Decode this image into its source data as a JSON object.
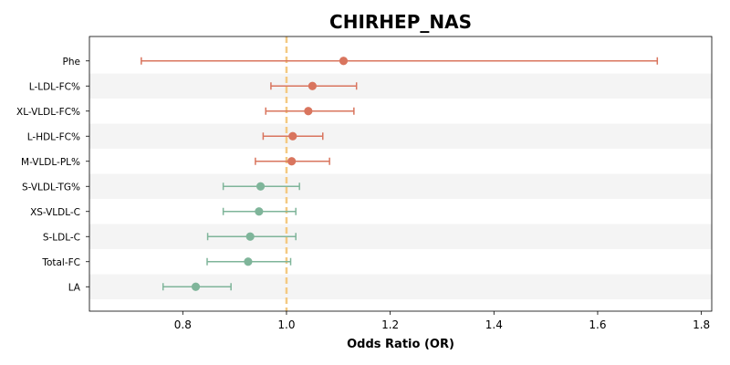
{
  "chart_data": {
    "type": "forest",
    "title": "CHIRHEP_NAS",
    "xlabel": "Odds Ratio (OR)",
    "ylabel": "",
    "xlim": [
      0.62,
      1.82
    ],
    "xticks": [
      "0.8",
      "1.0",
      "1.2",
      "1.4",
      "1.6",
      "1.8"
    ],
    "reference_line": 1.0,
    "reference_color": "#f3c982",
    "colors": {
      "positive": "#d9755e",
      "negative": "#7fb59a",
      "stripe": "#f4f4f4"
    },
    "grid": false,
    "rows": [
      {
        "label": "Phe",
        "or": 1.11,
        "lo": 0.72,
        "hi": 1.715,
        "group": "positive"
      },
      {
        "label": "L-LDL-FC%",
        "or": 1.05,
        "lo": 0.97,
        "hi": 1.135,
        "group": "positive"
      },
      {
        "label": "XL-VLDL-FC%",
        "or": 1.042,
        "lo": 0.96,
        "hi": 1.13,
        "group": "positive"
      },
      {
        "label": "L-HDL-FC%",
        "or": 1.012,
        "lo": 0.955,
        "hi": 1.07,
        "group": "positive"
      },
      {
        "label": "M-VLDL-PL%",
        "or": 1.01,
        "lo": 0.94,
        "hi": 1.083,
        "group": "positive"
      },
      {
        "label": "S-VLDL-TG%",
        "or": 0.95,
        "lo": 0.878,
        "hi": 1.025,
        "group": "negative"
      },
      {
        "label": "XS-VLDL-C",
        "or": 0.947,
        "lo": 0.878,
        "hi": 1.018,
        "group": "negative"
      },
      {
        "label": "S-LDL-C",
        "or": 0.93,
        "lo": 0.848,
        "hi": 1.018,
        "group": "negative"
      },
      {
        "label": "Total-FC",
        "or": 0.926,
        "lo": 0.847,
        "hi": 1.008,
        "group": "negative"
      },
      {
        "label": "LA",
        "or": 0.825,
        "lo": 0.762,
        "hi": 0.893,
        "group": "negative"
      }
    ]
  }
}
